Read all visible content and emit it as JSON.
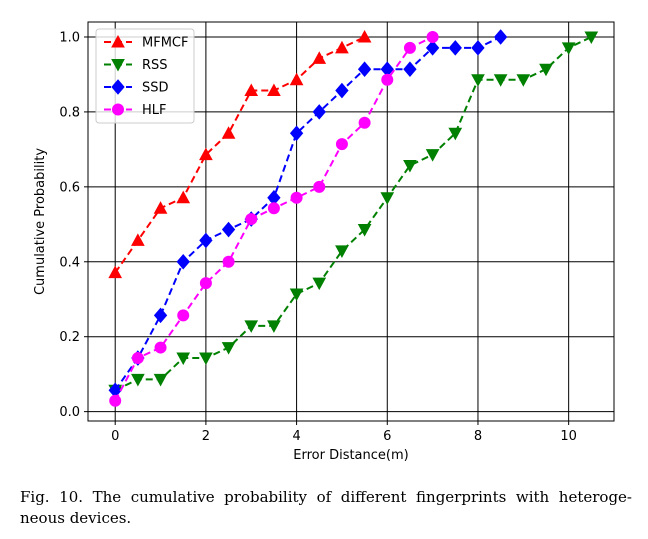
{
  "chart_data": {
    "type": "line",
    "title": "",
    "xlabel": "Error Distance(m)",
    "ylabel": "Cumulative Probability",
    "xlim": [
      -0.6,
      11.0
    ],
    "ylim": [
      -0.025,
      1.04
    ],
    "xticks": [
      0,
      2,
      4,
      6,
      8,
      10
    ],
    "yticks": [
      0.0,
      0.2,
      0.4,
      0.6,
      0.8,
      1.0
    ],
    "xtick_labels": [
      "0",
      "2",
      "4",
      "6",
      "8",
      "10"
    ],
    "ytick_labels": [
      "0.0",
      "0.2",
      "0.4",
      "0.6",
      "0.8",
      "1.0"
    ],
    "grid": true,
    "legend_position": "top-left",
    "series": [
      {
        "name": "MFMCF",
        "color": "#ff0000",
        "marker": "triangle-up",
        "x": [
          0,
          0.5,
          1,
          1.5,
          2,
          2.5,
          3,
          3.5,
          4,
          4.5,
          5,
          5.5
        ],
        "y": [
          0.371,
          0.457,
          0.543,
          0.571,
          0.686,
          0.743,
          0.857,
          0.857,
          0.886,
          0.943,
          0.971,
          1.0
        ]
      },
      {
        "name": "RSS",
        "color": "#008000",
        "marker": "triangle-down",
        "x": [
          0,
          0.5,
          1,
          1.5,
          2,
          2.5,
          3,
          3.5,
          4,
          4.5,
          5,
          5.5,
          6,
          6.5,
          7,
          7.5,
          8,
          8.5,
          9,
          9.5,
          10,
          10.5
        ],
        "y": [
          0.057,
          0.086,
          0.086,
          0.143,
          0.143,
          0.171,
          0.229,
          0.229,
          0.314,
          0.343,
          0.429,
          0.486,
          0.571,
          0.657,
          0.686,
          0.743,
          0.886,
          0.886,
          0.886,
          0.914,
          0.971,
          1.0
        ]
      },
      {
        "name": "SSD",
        "color": "#0000ff",
        "marker": "diamond",
        "x": [
          0,
          0.5,
          1,
          1.5,
          2,
          2.5,
          3,
          3.5,
          4,
          4.5,
          5,
          5.5,
          6,
          6.5,
          7,
          7.5,
          8,
          8.5
        ],
        "y": [
          0.057,
          0.143,
          0.257,
          0.4,
          0.457,
          0.486,
          0.514,
          0.571,
          0.743,
          0.8,
          0.857,
          0.914,
          0.914,
          0.914,
          0.971,
          0.971,
          0.971,
          1.0
        ]
      },
      {
        "name": "HLF",
        "color": "#ff00ff",
        "marker": "circle",
        "x": [
          0,
          0.5,
          1,
          1.5,
          2,
          2.5,
          3,
          3.5,
          4,
          4.5,
          5,
          5.5,
          6,
          6.5,
          7
        ],
        "y": [
          0.029,
          0.143,
          0.171,
          0.257,
          0.343,
          0.4,
          0.514,
          0.543,
          0.571,
          0.6,
          0.714,
          0.771,
          0.886,
          0.971,
          1.0
        ]
      }
    ]
  },
  "caption": {
    "text": "Fig. 10.    The cumulative probability of different fingerprints with heteroge- neous devices."
  }
}
